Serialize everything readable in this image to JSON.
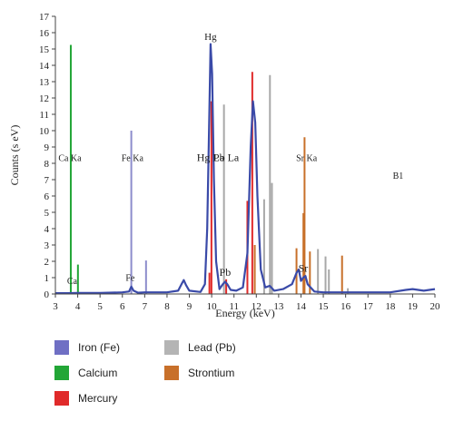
{
  "chart_data": {
    "type": "line",
    "xlabel": "Energy (keV)",
    "ylabel": "Counts (s eV)",
    "xlim": [
      3,
      20
    ],
    "ylim": [
      0,
      17
    ],
    "x_ticks": [
      3,
      4,
      5,
      6,
      7,
      8,
      9,
      10,
      11,
      12,
      13,
      14,
      15,
      16,
      17,
      18,
      19,
      20
    ],
    "y_ticks": [
      0,
      1,
      2,
      3,
      4,
      5,
      6,
      7,
      8,
      9,
      10,
      11,
      12,
      13,
      14,
      15,
      16,
      17
    ],
    "grid": false,
    "spectrum": {
      "color": "#3a4aa8",
      "points": [
        [
          3.0,
          0.05
        ],
        [
          3.5,
          0.05
        ],
        [
          4.0,
          0.06
        ],
        [
          5.0,
          0.06
        ],
        [
          6.0,
          0.1
        ],
        [
          6.3,
          0.15
        ],
        [
          6.4,
          0.45
        ],
        [
          6.5,
          0.2
        ],
        [
          6.7,
          0.08
        ],
        [
          7.0,
          0.1
        ],
        [
          8.0,
          0.1
        ],
        [
          8.5,
          0.2
        ],
        [
          8.65,
          0.6
        ],
        [
          8.75,
          0.85
        ],
        [
          8.85,
          0.55
        ],
        [
          9.0,
          0.2
        ],
        [
          9.5,
          0.12
        ],
        [
          9.7,
          0.6
        ],
        [
          9.8,
          4.0
        ],
        [
          9.88,
          10.0
        ],
        [
          9.95,
          15.3
        ],
        [
          10.02,
          13.5
        ],
        [
          10.1,
          7.0
        ],
        [
          10.2,
          2.0
        ],
        [
          10.35,
          0.3
        ],
        [
          10.5,
          0.6
        ],
        [
          10.6,
          0.75
        ],
        [
          10.7,
          0.6
        ],
        [
          10.85,
          0.25
        ],
        [
          11.1,
          0.2
        ],
        [
          11.4,
          0.4
        ],
        [
          11.6,
          2.5
        ],
        [
          11.75,
          9.0
        ],
        [
          11.85,
          11.8
        ],
        [
          11.95,
          10.5
        ],
        [
          12.05,
          6.0
        ],
        [
          12.2,
          1.5
        ],
        [
          12.4,
          0.4
        ],
        [
          12.6,
          0.5
        ],
        [
          12.8,
          0.2
        ],
        [
          13.2,
          0.3
        ],
        [
          13.6,
          0.6
        ],
        [
          13.8,
          1.3
        ],
        [
          13.9,
          1.5
        ],
        [
          14.0,
          0.8
        ],
        [
          14.1,
          1.0
        ],
        [
          14.2,
          1.1
        ],
        [
          14.3,
          0.6
        ],
        [
          14.6,
          0.15
        ],
        [
          15.0,
          0.1
        ],
        [
          16.0,
          0.1
        ],
        [
          17.0,
          0.1
        ],
        [
          18.0,
          0.1
        ],
        [
          18.7,
          0.25
        ],
        [
          19.0,
          0.3
        ],
        [
          19.5,
          0.2
        ],
        [
          20.0,
          0.3
        ]
      ]
    },
    "lines": [
      {
        "element": "Calcium",
        "color": "#22a636",
        "x": 3.69,
        "y": 15.25
      },
      {
        "element": "Calcium",
        "color": "#22a636",
        "x": 4.01,
        "y": 1.8
      },
      {
        "element": "Iron (Fe)",
        "color": "#8c8ccc",
        "x": 6.4,
        "y": 10.0
      },
      {
        "element": "Iron (Fe)",
        "color": "#8c8ccc",
        "x": 7.06,
        "y": 2.05
      },
      {
        "element": "Mercury",
        "color": "#e02a2a",
        "x": 9.99,
        "y": 11.8
      },
      {
        "element": "Mercury",
        "color": "#e02a2a",
        "x": 9.9,
        "y": 1.3
      },
      {
        "element": "Mercury",
        "color": "#e02a2a",
        "x": 11.82,
        "y": 13.6
      },
      {
        "element": "Mercury",
        "color": "#e02a2a",
        "x": 11.6,
        "y": 5.7
      },
      {
        "element": "Mercury",
        "color": "#e02a2a",
        "x": 10.65,
        "y": 0.9
      },
      {
        "element": "Lead (Pb)",
        "color": "#a8a8a8",
        "x": 10.55,
        "y": 11.6
      },
      {
        "element": "Lead (Pb)",
        "color": "#a8a8a8",
        "x": 12.61,
        "y": 13.4
      },
      {
        "element": "Lead (Pb)",
        "color": "#a8a8a8",
        "x": 12.7,
        "y": 6.8
      },
      {
        "element": "Lead (Pb)",
        "color": "#a8a8a8",
        "x": 12.35,
        "y": 5.8
      },
      {
        "element": "Lead (Pb)",
        "color": "#a8a8a8",
        "x": 14.76,
        "y": 2.75
      },
      {
        "element": "Lead (Pb)",
        "color": "#a8a8a8",
        "x": 15.1,
        "y": 2.3
      },
      {
        "element": "Lead (Pb)",
        "color": "#a8a8a8",
        "x": 15.25,
        "y": 1.5
      },
      {
        "element": "Lead (Pb)",
        "color": "#a8a8a8",
        "x": 16.1,
        "y": 0.35
      },
      {
        "element": "Strontium",
        "color": "#c8702a",
        "x": 14.16,
        "y": 9.6
      },
      {
        "element": "Strontium",
        "color": "#c8702a",
        "x": 14.11,
        "y": 4.95
      },
      {
        "element": "Strontium",
        "color": "#c8702a",
        "x": 14.4,
        "y": 2.6
      },
      {
        "element": "Strontium",
        "color": "#c8702a",
        "x": 15.84,
        "y": 2.35
      },
      {
        "element": "Strontium",
        "color": "#c8702a",
        "x": 11.93,
        "y": 3.0
      },
      {
        "element": "Strontium",
        "color": "#c8702a",
        "x": 13.8,
        "y": 2.8
      }
    ],
    "annotations": [
      {
        "text": "Hg",
        "x": 9.95,
        "y": 15.55,
        "size": 11
      },
      {
        "text": "Ca Ka",
        "x": 3.65,
        "y": 8.15,
        "size": 10
      },
      {
        "text": "Fe Ka",
        "x": 6.45,
        "y": 8.15,
        "size": 10
      },
      {
        "text": "Hg La",
        "x": 9.95,
        "y": 8.15,
        "size": 12
      },
      {
        "text": "Pb La",
        "x": 10.65,
        "y": 8.15,
        "size": 12
      },
      {
        "text": "Sr Ka",
        "x": 14.25,
        "y": 8.15,
        "size": 10
      },
      {
        "text": "B1",
        "x": 18.35,
        "y": 7.05,
        "size": 10
      },
      {
        "text": "Ca",
        "x": 3.75,
        "y": 0.6,
        "size": 10
      },
      {
        "text": "Fe",
        "x": 6.35,
        "y": 0.8,
        "size": 10
      },
      {
        "text": "Pb",
        "x": 10.6,
        "y": 1.1,
        "size": 12
      },
      {
        "text": "Sr",
        "x": 14.1,
        "y": 1.35,
        "size": 12
      }
    ]
  },
  "legend": {
    "items": [
      {
        "label": "Iron (Fe)",
        "color": "#6f6fc4"
      },
      {
        "label": "Lead (Pb)",
        "color": "#b4b4b4"
      },
      {
        "label": "Calcium",
        "color": "#22a636"
      },
      {
        "label": "Strontium",
        "color": "#c8702a"
      },
      {
        "label": "Mercury",
        "color": "#e02a2a"
      }
    ]
  }
}
